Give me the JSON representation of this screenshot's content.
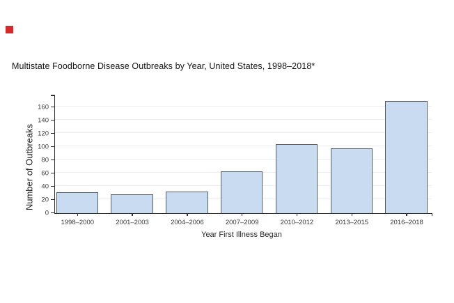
{
  "page": {
    "background": "#ffffff"
  },
  "marker": {
    "name": "red-square-marker",
    "color": "#d22b2b"
  },
  "chart_data": {
    "type": "bar",
    "title": "Multistate Foodborne Disease Outbreaks by Year, United States, 1998–2018*",
    "xlabel": "Year First Illness Began",
    "ylabel": "Number of Outbreaks",
    "categories": [
      "1998–2000",
      "2001–2003",
      "2004–2006",
      "2007–2009",
      "2010–2012",
      "2013–2015",
      "2016–2018"
    ],
    "values": [
      32,
      28,
      33,
      63,
      104,
      98,
      170
    ],
    "y_ticks": [
      0,
      20,
      40,
      60,
      80,
      100,
      120,
      140,
      160
    ],
    "ylim": [
      0,
      178
    ],
    "grid": "horizontal-light",
    "legend": "none",
    "colors": {
      "bar_fill": "#c9dbf0",
      "bar_border": "#4e5d6e",
      "axis": "#2f2f2f",
      "gridline": "#ededed",
      "tick_text": "#3a3a3a",
      "title_text": "#141414"
    }
  }
}
